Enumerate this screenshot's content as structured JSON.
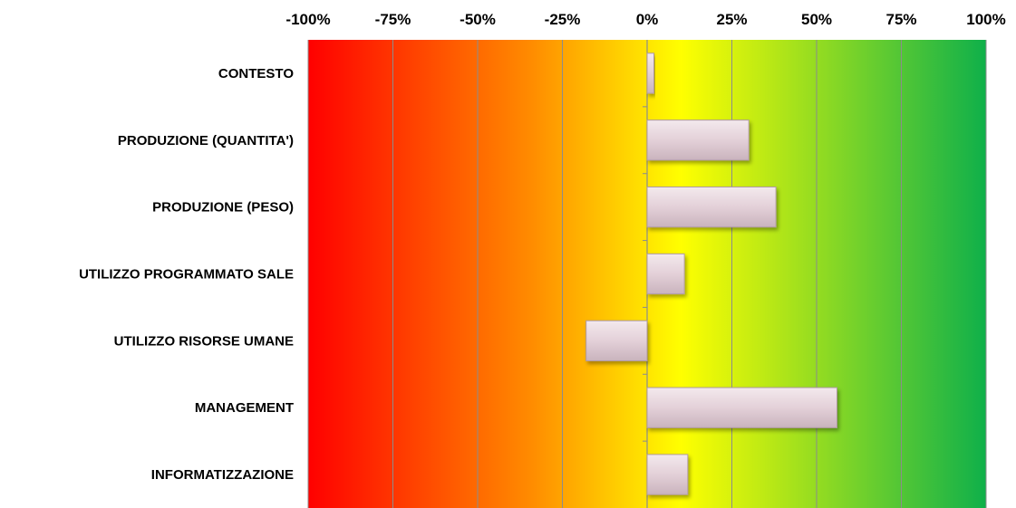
{
  "chart_data": {
    "type": "bar",
    "orientation": "horizontal",
    "title": "",
    "xlabel": "",
    "ylabel": "",
    "categories": [
      "CONTESTO",
      "PRODUZIONE (QUANTITA')",
      "PRODUZIONE (PESO)",
      "UTILIZZO PROGRAMMATO SALE",
      "UTILIZZO RISORSE UMANE",
      "MANAGEMENT",
      "INFORMATIZZAZIONE"
    ],
    "values": [
      2,
      30,
      38,
      11,
      -18,
      56,
      12
    ],
    "value_unit": "%",
    "xlim": [
      -100,
      100
    ],
    "x_ticks": [
      "-100%",
      "-75%",
      "-50%",
      "-25%",
      "0%",
      "25%",
      "50%",
      "75%",
      "100%"
    ],
    "x_tick_values": [
      -100,
      -75,
      -50,
      -25,
      0,
      25,
      50,
      75,
      100
    ],
    "x_axis_position": "top",
    "grid": true,
    "legend": "none",
    "background_gradient": [
      "#ff0000",
      "#ff8c00",
      "#ffff00",
      "#0fb04a"
    ],
    "bar_color": "#e6d3da",
    "bar_edge_color": "#b09aa3"
  }
}
